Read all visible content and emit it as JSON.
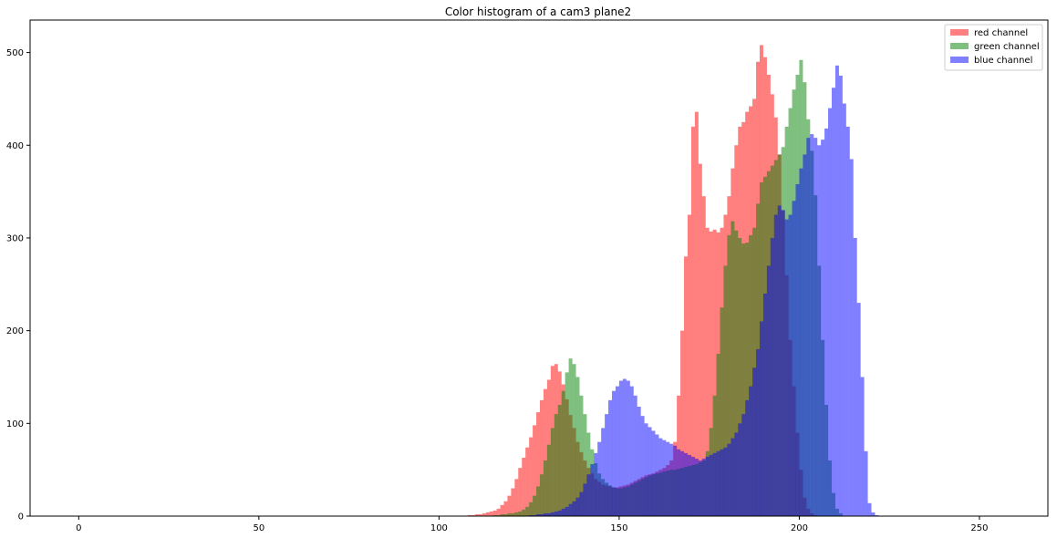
{
  "chart_data": {
    "type": "bar",
    "title": "Color histogram of a cam3 plane2",
    "xlabel": "",
    "ylabel": "",
    "xlim": [
      -13.5,
      269
    ],
    "ylim": [
      0,
      535
    ],
    "bin_width": 1,
    "x_ticks": [
      0,
      50,
      100,
      150,
      200,
      250
    ],
    "y_ticks": [
      0,
      100,
      200,
      300,
      400,
      500
    ],
    "grid": false,
    "legend_placement": "top-right",
    "series": [
      {
        "name": "red channel",
        "color": "#ff0000",
        "opacity": 0.5,
        "start": 108,
        "values": [
          1,
          1,
          2,
          2,
          3,
          4,
          5,
          6,
          8,
          12,
          16,
          22,
          30,
          40,
          52,
          63,
          74,
          85,
          98,
          112,
          125,
          137,
          147,
          162,
          164,
          156,
          142,
          126,
          109,
          95,
          80,
          69,
          60,
          52,
          46,
          40,
          37,
          34,
          33,
          32,
          31,
          31,
          32,
          33,
          34,
          36,
          38,
          40,
          42,
          44,
          45,
          46,
          48,
          50,
          52,
          55,
          60,
          80,
          130,
          200,
          280,
          325,
          420,
          436,
          380,
          345,
          311,
          307,
          309,
          306,
          311,
          325,
          345,
          375,
          400,
          420,
          425,
          436,
          442,
          450,
          490,
          508,
          495,
          476,
          455,
          430,
          390,
          330,
          260,
          190,
          140,
          90,
          50,
          20,
          8,
          3,
          1
        ]
      },
      {
        "name": "green channel",
        "color": "#008000",
        "opacity": 0.5,
        "start": 115,
        "values": [
          1,
          1,
          2,
          2,
          3,
          3,
          4,
          5,
          7,
          10,
          15,
          22,
          32,
          45,
          60,
          77,
          95,
          110,
          120,
          135,
          155,
          170,
          164,
          150,
          130,
          110,
          90,
          72,
          57,
          46,
          40,
          36,
          33,
          31,
          30,
          30,
          31,
          32,
          34,
          36,
          38,
          40,
          42,
          44,
          45,
          46,
          47,
          48,
          49,
          50,
          50,
          51,
          52,
          53,
          54,
          55,
          56,
          58,
          60,
          70,
          95,
          130,
          175,
          225,
          270,
          303,
          318,
          308,
          300,
          294,
          295,
          303,
          311,
          337,
          360,
          366,
          372,
          378,
          384,
          390,
          398,
          420,
          440,
          460,
          476,
          492,
          468,
          428,
          394,
          346,
          270,
          190,
          120,
          60,
          25,
          8,
          3
        ]
      },
      {
        "name": "blue channel",
        "color": "#0000ff",
        "opacity": 0.5,
        "start": 125,
        "values": [
          1,
          1,
          2,
          2,
          3,
          3,
          4,
          5,
          6,
          8,
          10,
          13,
          16,
          20,
          26,
          35,
          45,
          56,
          68,
          80,
          95,
          110,
          125,
          135,
          140,
          146,
          148,
          146,
          140,
          130,
          118,
          108,
          100,
          96,
          92,
          88,
          84,
          82,
          80,
          78,
          76,
          72,
          70,
          68,
          66,
          64,
          62,
          60,
          62,
          64,
          66,
          68,
          70,
          72,
          74,
          78,
          84,
          90,
          100,
          110,
          125,
          140,
          160,
          180,
          210,
          240,
          270,
          300,
          325,
          335,
          330,
          320,
          325,
          340,
          358,
          375,
          390,
          408,
          412,
          408,
          400,
          406,
          418,
          440,
          462,
          486,
          475,
          445,
          420,
          385,
          300,
          230,
          150,
          70,
          14,
          4,
          1
        ]
      }
    ]
  }
}
